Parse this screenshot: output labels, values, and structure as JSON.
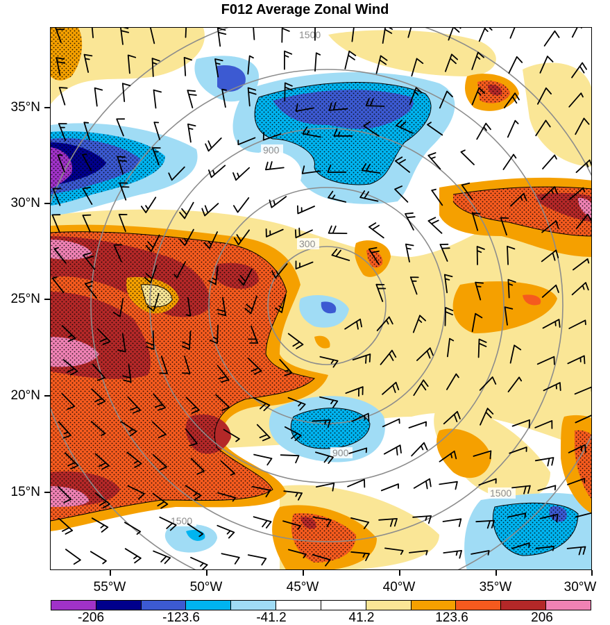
{
  "title": "F012 Average Zonal Wind",
  "map": {
    "lat_ticks": [
      "35°N",
      "30°N",
      "25°N",
      "20°N",
      "15°N"
    ],
    "lon_ticks": [
      "55°W",
      "50°W",
      "45°W",
      "40°W",
      "35°W",
      "30°W"
    ],
    "range_ring_labels": [
      "300",
      "900",
      "1500"
    ],
    "colorbar": {
      "colors": [
        "#a032c8",
        "#00008c",
        "#3c5ad2",
        "#00b4f0",
        "#a0dcf5",
        "#ffffff",
        "#ffffff",
        "#fae696",
        "#f5a000",
        "#f55a1e",
        "#b42828",
        "#f082b4"
      ],
      "labels": [
        "-206",
        "-123.6",
        "-41.2",
        "41.2",
        "123.6",
        "206"
      ]
    }
  }
}
